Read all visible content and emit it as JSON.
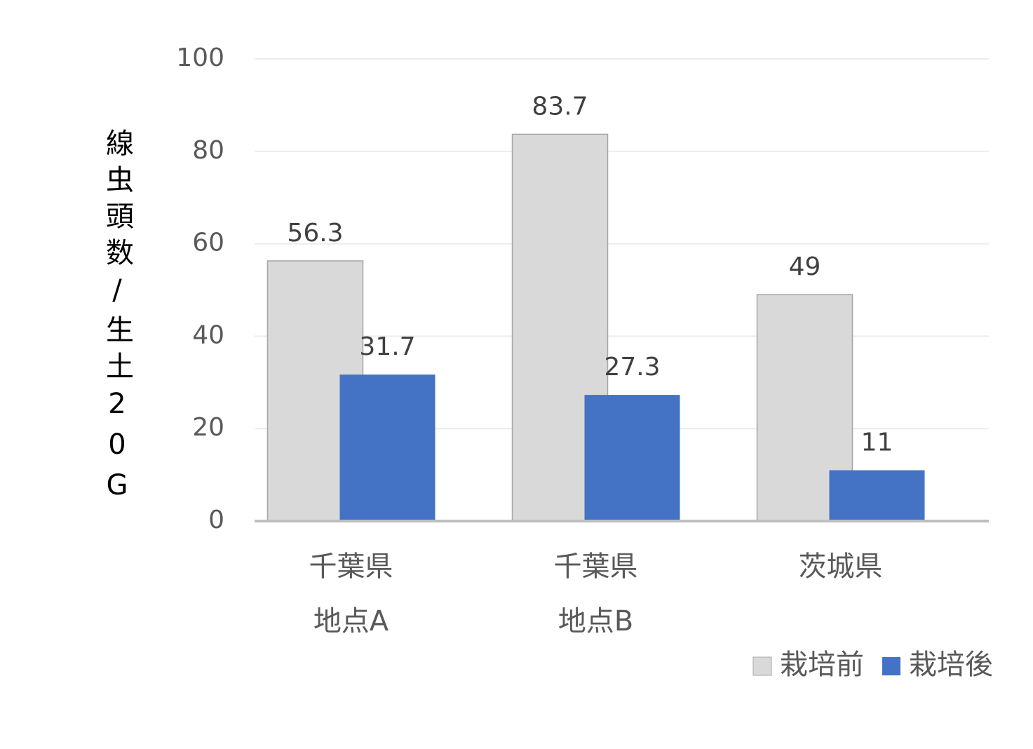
{
  "chart_data": {
    "type": "bar",
    "y_label": "線虫頭数/生土20G",
    "categories": [
      [
        "千葉県",
        "地点A"
      ],
      [
        "千葉県",
        "地点B"
      ],
      [
        "茨城県"
      ]
    ],
    "series": [
      {
        "name": "栽培前",
        "color": "#d9d9d9",
        "values": [
          56.3,
          83.7,
          49
        ]
      },
      {
        "name": "栽培後",
        "color": "#4472c4",
        "values": [
          31.7,
          27.3,
          11
        ]
      }
    ],
    "ylim": [
      0,
      100
    ],
    "yticks": [
      0,
      20,
      40,
      60,
      80,
      100
    ],
    "grid": true,
    "legend": "bottom-right"
  }
}
